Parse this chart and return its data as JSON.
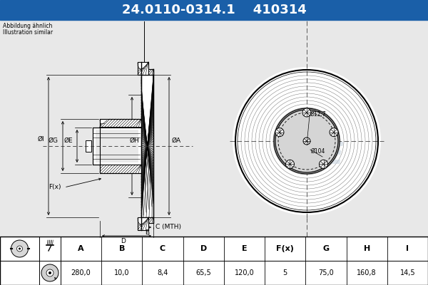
{
  "title_part": "24.0110-0314.1",
  "title_code": "410314",
  "subtitle1": "Abbildung ähnlich",
  "subtitle2": "Illustration similar",
  "bg_color": "#e8e8e8",
  "header_bg": "#1a5fa8",
  "header_text_color": "#ffffff",
  "table_headers": [
    "A",
    "B",
    "C",
    "D",
    "E",
    "F(x)",
    "G",
    "H",
    "I"
  ],
  "table_values": [
    "280,0",
    "10,0",
    "8,4",
    "65,5",
    "120,0",
    "5",
    "75,0",
    "160,8",
    "14,5"
  ],
  "label_A": "ØA",
  "label_B": "B",
  "label_C": "C (MTH)",
  "label_D": "D",
  "label_E": "ØE",
  "label_F": "F(x)",
  "label_G": "ØG",
  "label_H": "ØH",
  "label_I": "ØI",
  "dim_104": "Ø104",
  "dim_12_7": "Ø12,7",
  "line_color": "#000000",
  "white": "#ffffff",
  "ate_watermark_color": "#c8d4e0",
  "hatch_color": "#000000"
}
